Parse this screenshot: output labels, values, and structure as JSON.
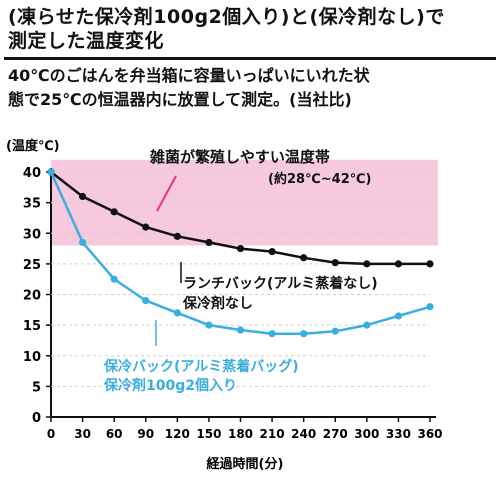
{
  "header": {
    "title_line1": "(凍らせた保冷剤100g2個入り)と(保冷剤なし)で",
    "title_line2": "測定した温度変化",
    "desc_line1": "40℃のごはんを弁当箱に容量いっぱいにいれた状",
    "desc_line2": "態で25℃の恒温器内に放置して測定。(当社比)"
  },
  "chart_data": {
    "type": "line",
    "ylabel": "(温度℃)",
    "xlabel": "経過時間(分)",
    "xlim": [
      0,
      360
    ],
    "ylim": [
      0,
      40
    ],
    "x_ticks": [
      0,
      30,
      60,
      90,
      120,
      150,
      180,
      210,
      240,
      270,
      300,
      330,
      360
    ],
    "y_ticks": [
      0,
      5,
      10,
      15,
      20,
      25,
      30,
      35,
      40
    ],
    "band": {
      "label": "雑菌が繁殖しやすい温度帯",
      "range_label": "(約28℃~42℃)",
      "y_from": 28,
      "y_to": 42,
      "color": "#f7c9de"
    },
    "series": [
      {
        "name": "ランチバック(アルミ蒸着なし)保冷剤なし",
        "label_line1": "ランチバック(アルミ蒸着なし)",
        "label_line2": "保冷剤なし",
        "color": "#111111",
        "points": [
          [
            0,
            40
          ],
          [
            30,
            36
          ],
          [
            60,
            33.5
          ],
          [
            90,
            31
          ],
          [
            120,
            29.5
          ],
          [
            150,
            28.5
          ],
          [
            180,
            27.5
          ],
          [
            210,
            27
          ],
          [
            240,
            26
          ],
          [
            270,
            25.2
          ],
          [
            300,
            25
          ],
          [
            330,
            25
          ],
          [
            360,
            25
          ]
        ]
      },
      {
        "name": "保冷バック(アルミ蒸着バッグ)保冷剤100g2個入り",
        "label_line1": "保冷バック(アルミ蒸着バッグ)",
        "label_line2": "保冷剤100g2個入り",
        "color": "#3aaee0",
        "points": [
          [
            0,
            40
          ],
          [
            30,
            28.5
          ],
          [
            60,
            22.5
          ],
          [
            90,
            19
          ],
          [
            120,
            17
          ],
          [
            150,
            15
          ],
          [
            180,
            14.2
          ],
          [
            210,
            13.6
          ],
          [
            240,
            13.6
          ],
          [
            270,
            14
          ],
          [
            300,
            15
          ],
          [
            330,
            16.5
          ],
          [
            360,
            18
          ]
        ]
      }
    ]
  }
}
